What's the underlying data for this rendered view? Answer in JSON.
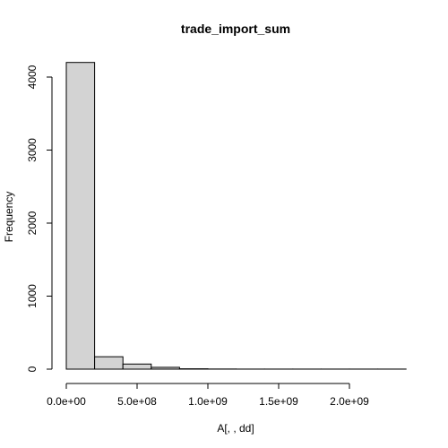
{
  "chart_data": {
    "type": "bar",
    "title": "trade_import_sum",
    "xlabel": "A[, , dd]",
    "ylabel": "Frequency",
    "bin_width": 200000000,
    "bins": [
      {
        "start": 0,
        "end": 200000000,
        "count": 4200
      },
      {
        "start": 200000000,
        "end": 400000000,
        "count": 170
      },
      {
        "start": 400000000,
        "end": 600000000,
        "count": 70
      },
      {
        "start": 600000000,
        "end": 800000000,
        "count": 25
      },
      {
        "start": 800000000,
        "end": 1000000000,
        "count": 5
      },
      {
        "start": 1000000000,
        "end": 1200000000,
        "count": 2
      },
      {
        "start": 1200000000,
        "end": 1400000000,
        "count": 1
      },
      {
        "start": 1400000000,
        "end": 1600000000,
        "count": 1
      },
      {
        "start": 1600000000,
        "end": 1800000000,
        "count": 1
      },
      {
        "start": 1800000000,
        "end": 2000000000,
        "count": 1
      },
      {
        "start": 2000000000,
        "end": 2200000000,
        "count": 1
      },
      {
        "start": 2200000000,
        "end": 2400000000,
        "count": 1
      }
    ],
    "x_ticks": [
      {
        "value": 0,
        "label": "0.0e+00"
      },
      {
        "value": 500000000,
        "label": "5.0e+08"
      },
      {
        "value": 1000000000,
        "label": "1.0e+09"
      },
      {
        "value": 1500000000,
        "label": "1.5e+09"
      },
      {
        "value": 2000000000,
        "label": "2.0e+09"
      }
    ],
    "y_ticks": [
      {
        "value": 0,
        "label": "0"
      },
      {
        "value": 1000,
        "label": "1000"
      },
      {
        "value": 2000,
        "label": "2000"
      },
      {
        "value": 3000,
        "label": "3000"
      },
      {
        "value": 4000,
        "label": "4000"
      }
    ],
    "xlim": [
      0,
      2400000000
    ],
    "ylim": [
      0,
      4200
    ],
    "bar_fill": "#d3d3d3",
    "bar_stroke": "#000000",
    "grid": false,
    "legend": "none"
  }
}
